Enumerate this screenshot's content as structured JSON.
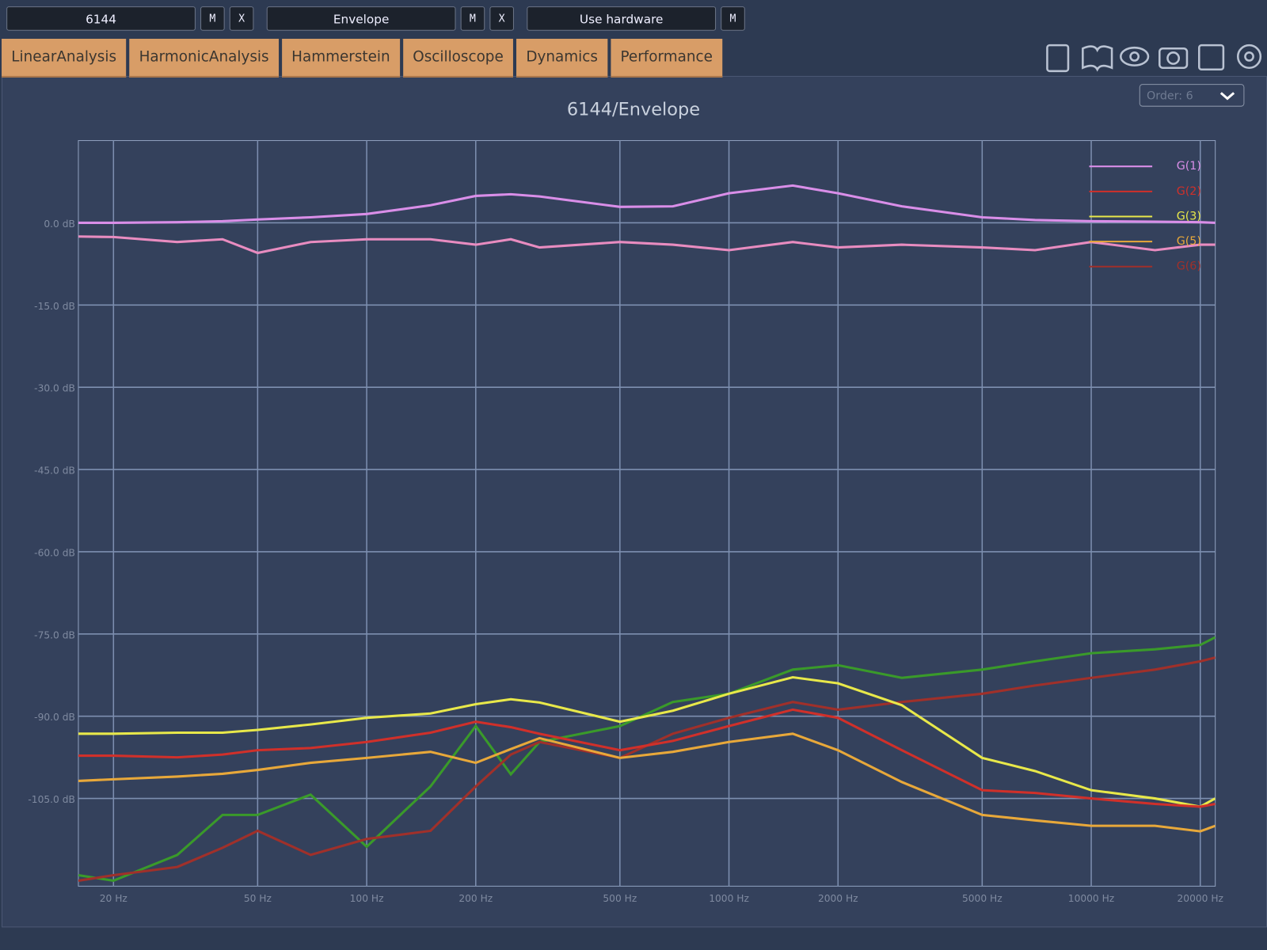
{
  "toolbar": {
    "fields": [
      {
        "text": "6144",
        "buttons": [
          "M",
          "X"
        ]
      },
      {
        "text": "Envelope",
        "buttons": [
          "M",
          "X"
        ]
      },
      {
        "text": "Use hardware",
        "buttons": [
          "M"
        ]
      }
    ]
  },
  "tabs": [
    "LinearAnalysis",
    "HarmonicAnalysis",
    "Hammerstein",
    "Oscilloscope",
    "Dynamics",
    "Performance"
  ],
  "order_select": "Order: 6",
  "chart_data": {
    "type": "line",
    "title": "6144/Envelope",
    "log_x": true,
    "grid": true,
    "legend": "top-right",
    "x": [
      16,
      20,
      30,
      40,
      50,
      70,
      100,
      150,
      200,
      250,
      300,
      500,
      700,
      1000,
      1500,
      2000,
      3000,
      5000,
      7000,
      10000,
      15000,
      20000,
      22000
    ],
    "xlim": [
      16,
      22000
    ],
    "ylim": [
      -121,
      15
    ],
    "xticks": [
      {
        "value": 20,
        "label": "20 Hz"
      },
      {
        "value": 50,
        "label": "50 Hz"
      },
      {
        "value": 100,
        "label": "100 Hz"
      },
      {
        "value": 200,
        "label": "200 Hz"
      },
      {
        "value": 500,
        "label": "500 Hz"
      },
      {
        "value": 1000,
        "label": "1000 Hz"
      },
      {
        "value": 2000,
        "label": "2000 Hz"
      },
      {
        "value": 5000,
        "label": "5000 Hz"
      },
      {
        "value": 10000,
        "label": "10000 Hz"
      },
      {
        "value": 20000,
        "label": "20000 Hz"
      }
    ],
    "yticks": [
      {
        "value": 0,
        "label": "0.0 dB"
      },
      {
        "value": -15,
        "label": "-15.0 dB"
      },
      {
        "value": -30,
        "label": "-30.0 dB"
      },
      {
        "value": -45,
        "label": "-45.0 dB"
      },
      {
        "value": -60,
        "label": "-60.0 dB"
      },
      {
        "value": -75,
        "label": "-75.0 dB"
      },
      {
        "value": -90,
        "label": "-90.0 dB"
      },
      {
        "value": -105,
        "label": "-105.0 dB"
      }
    ],
    "series": [
      {
        "name": "G(1)",
        "color": "#d98ee8",
        "values": [
          0,
          0,
          0.1,
          0.3,
          0.6,
          1,
          1.6,
          3.2,
          4.9,
          5.2,
          4.8,
          2.9,
          3,
          5.4,
          6.8,
          5.4,
          3,
          1,
          0.5,
          0.3,
          0.2,
          0.1,
          0
        ]
      },
      {
        "name": "G(2)",
        "color": "#d0302a",
        "values": [
          -97.2,
          -97.2,
          -97.5,
          -97,
          -96.2,
          -95.8,
          -94.7,
          -93,
          -91,
          -92,
          -93.2,
          -96.2,
          -94.5,
          -91.8,
          -88.8,
          -90.3,
          -96.2,
          -103.5,
          -104,
          -105,
          -106,
          -106.5,
          -106
        ]
      },
      {
        "name": "G(3)",
        "color": "#e8e84a",
        "values": [
          -93.2,
          -93.2,
          -93,
          -93,
          -92.5,
          -91.5,
          -90.3,
          -89.5,
          -87.8,
          -86.9,
          -87.5,
          -91,
          -89,
          -85.9,
          -82.9,
          -84,
          -88,
          -97.6,
          -100,
          -103.5,
          -105,
          -106.5,
          -105
        ]
      },
      {
        "name": "G(5)",
        "color": "#e8a83a",
        "values": [
          -101.8,
          -101.5,
          -101,
          -100.5,
          -99.8,
          -98.5,
          -97.6,
          -96.5,
          -98.5,
          -96,
          -94,
          -97.6,
          -96.5,
          -94.7,
          -93.2,
          -96.2,
          -102,
          -108,
          -109,
          -110,
          -110,
          -111,
          -110
        ]
      },
      {
        "name": "G(6)",
        "color": "#a0302a",
        "values": [
          -120,
          -119,
          -117.5,
          -114,
          -110.9,
          -115.3,
          -112.4,
          -110.9,
          -102.8,
          -97,
          -94.7,
          -97.6,
          -93.2,
          -90.3,
          -87.4,
          -88.8,
          -87.4,
          -85.9,
          -84.4,
          -83,
          -81.5,
          -80,
          -79.3
        ]
      },
      {
        "color": "#e88cc0",
        "values": [
          -2.5,
          -2.6,
          -3.5,
          -3,
          -5.5,
          -3.5,
          -3,
          -3,
          -4,
          -3,
          -4.5,
          -3.5,
          -4,
          -5,
          -3.5,
          -4.5,
          -4,
          -4.5,
          -5,
          -3.5,
          -5,
          -4,
          -4
        ]
      },
      {
        "color": "#3a9a2a",
        "values": [
          -119,
          -120,
          -115.3,
          -108,
          -108,
          -104.3,
          -113.8,
          -102.8,
          -91.8,
          -100.6,
          -94.7,
          -91.8,
          -87.4,
          -85.9,
          -81.5,
          -80.7,
          -83,
          -81.5,
          -80,
          -78.5,
          -77.8,
          -77,
          -75.6
        ]
      }
    ]
  }
}
